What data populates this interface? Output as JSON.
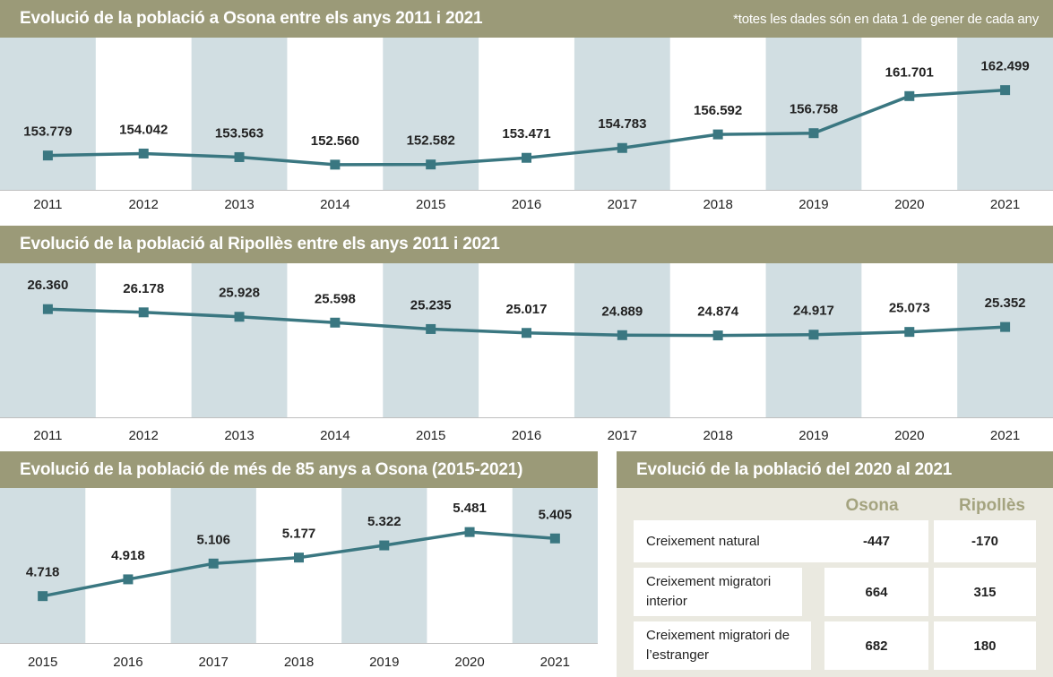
{
  "chart_data": [
    {
      "type": "line",
      "title": "Evolució de la població a Osona entre els anys 2011 i 2021",
      "note": "*totes les dades són en data 1 de gener de cada any",
      "categories": [
        "2011",
        "2012",
        "2013",
        "2014",
        "2015",
        "2016",
        "2017",
        "2018",
        "2019",
        "2020",
        "2021"
      ],
      "values": [
        153779,
        154042,
        153563,
        152560,
        152582,
        153471,
        154783,
        156592,
        156758,
        161701,
        162499
      ],
      "labels": [
        "153.779",
        "154.042",
        "153.563",
        "152.560",
        "152.582",
        "153.471",
        "154.783",
        "156.592",
        "156.758",
        "161.701",
        "162.499"
      ],
      "ylim": [
        149200,
        169500
      ]
    },
    {
      "type": "line",
      "title": "Evolució de la població al Ripollès entre els anys 2011 i 2021",
      "categories": [
        "2011",
        "2012",
        "2013",
        "2014",
        "2015",
        "2016",
        "2017",
        "2018",
        "2019",
        "2020",
        "2021"
      ],
      "values": [
        26360,
        26178,
        25928,
        25598,
        25235,
        25017,
        24889,
        24874,
        24917,
        25073,
        25352
      ],
      "labels": [
        "26.360",
        "26.178",
        "25.928",
        "25.598",
        "25.235",
        "25.017",
        "24.889",
        "24.874",
        "24.917",
        "25.073",
        "25.352"
      ],
      "ylim": [
        20250,
        28950
      ]
    },
    {
      "type": "line",
      "title": "Evolució de la població de més de 85 anys a Osona (2015-2021)",
      "categories": [
        "2015",
        "2016",
        "2017",
        "2018",
        "2019",
        "2020",
        "2021"
      ],
      "values": [
        4718,
        4918,
        5106,
        5177,
        5322,
        5481,
        5405
      ],
      "labels": [
        "4.718",
        "4.918",
        "5.106",
        "5.177",
        "5.322",
        "5.481",
        "5.405"
      ],
      "ylim": [
        4160,
        6005
      ]
    },
    {
      "type": "table",
      "title": "Evolució de la població del 2020 al 2021",
      "columns": [
        "Osona",
        "Ripollès"
      ],
      "rows": [
        {
          "label": "Creixement natural",
          "values": [
            "-447",
            "-170"
          ]
        },
        {
          "label": "Creixement migratori interior",
          "values": [
            "664",
            "315"
          ]
        },
        {
          "label": "Creixement migratori de l’estranger",
          "values": [
            "682",
            "180"
          ]
        }
      ]
    }
  ],
  "colors": {
    "header": "#9b9a78",
    "band": "#d1dee2",
    "line": "#3a7781",
    "text": "#222222",
    "colhead": "#a4a37f",
    "tableBg": "#eae9e0"
  }
}
